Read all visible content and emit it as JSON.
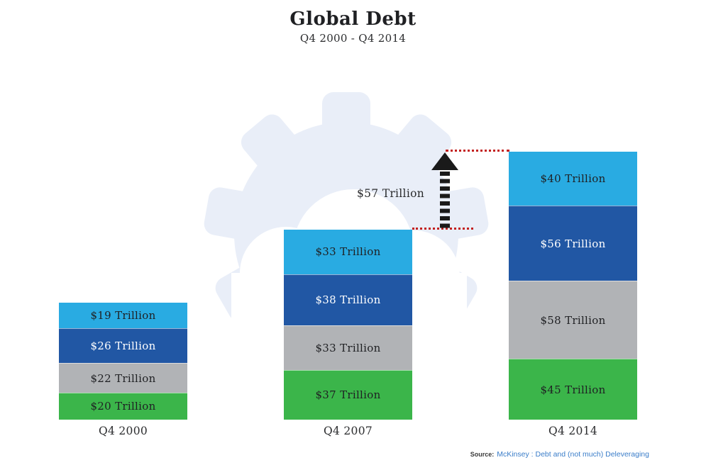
{
  "header": {
    "title": "Global Debt",
    "subtitle": "Q4 2000 - Q4 2014"
  },
  "annotation": {
    "label": "$57 Trillion"
  },
  "source": {
    "prefix": "Source:",
    "text": "McKinsey : Debt and (not much) Deleveraging"
  },
  "colors": {
    "light_blue": "#29abe2",
    "dark_blue": "#2157a4",
    "gray": "#b1b3b6",
    "green": "#3bb54a",
    "gear_background": "#e9eef8",
    "red_dotted_line": "#c3201f",
    "arrow_black": "#1a1a1a",
    "source_link_blue": "#3a7dc9"
  },
  "chart_data": {
    "type": "bar",
    "stacked": true,
    "title": "Global Debt",
    "subtitle": "Q4 2000 - Q4 2014",
    "unit": "USD Trillion",
    "legend": false,
    "gridlines": false,
    "categories": [
      "Q4 2000",
      "Q4 2007",
      "Q4 2014"
    ],
    "series": [
      {
        "name": "tier-1-light-blue",
        "color": "#29abe2",
        "text_color": "#1f2023",
        "values": [
          19,
          33,
          40
        ],
        "labels": [
          "$19 Trillion",
          "$33 Trillion",
          "$40 Trillion"
        ]
      },
      {
        "name": "tier-2-dark-blue",
        "color": "#2157a4",
        "text_color": "#ffffff",
        "values": [
          26,
          38,
          56
        ],
        "labels": [
          "$26 Trillion",
          "$38 Trillion",
          "$56 Trillion"
        ]
      },
      {
        "name": "tier-3-gray",
        "color": "#b1b3b6",
        "text_color": "#1f2023",
        "values": [
          22,
          33,
          58
        ],
        "labels": [
          "$22 Trillion",
          "$33 Trillion",
          "$58 Trillion"
        ]
      },
      {
        "name": "tier-4-green",
        "color": "#3bb54a",
        "text_color": "#1f2023",
        "values": [
          20,
          37,
          45
        ],
        "labels": [
          "$20 Trillion",
          "$37 Trillion",
          "$45 Trillion"
        ]
      }
    ],
    "totals": [
      87,
      141,
      199
    ],
    "annotation": {
      "label": "$57 Trillion"
    }
  }
}
